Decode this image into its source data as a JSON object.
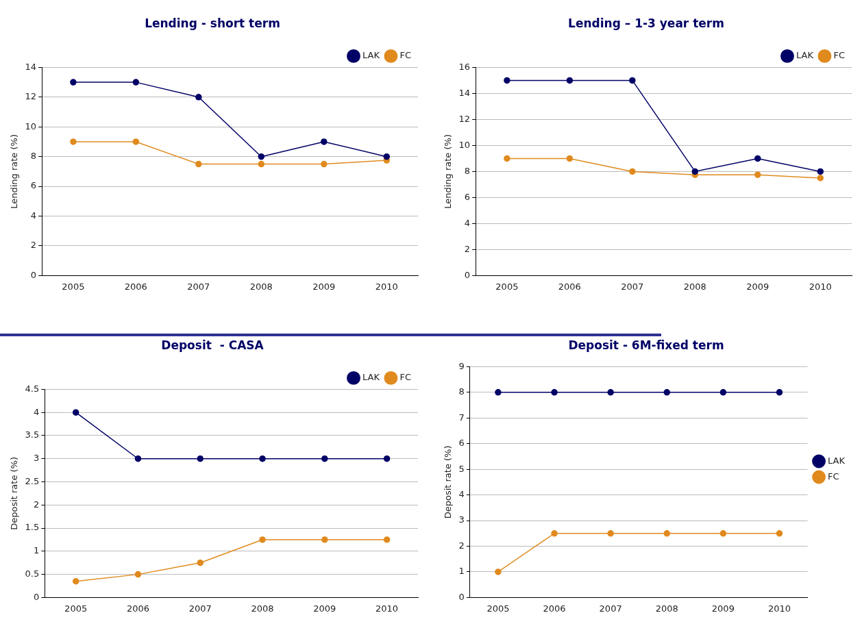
{
  "chart_data": [
    {
      "type": "line",
      "title": "Lending - short term",
      "ylabel": "Lending rate (%)",
      "categories": [
        "2005",
        "2006",
        "2007",
        "2008",
        "2009",
        "2010"
      ],
      "series": [
        {
          "name": "LAK",
          "color": "#000066",
          "values": [
            13,
            13,
            12,
            8,
            9,
            8
          ]
        },
        {
          "name": "FC",
          "color": "#e08a1e",
          "values": [
            9,
            9,
            7.5,
            7.5,
            7.5,
            7.75
          ]
        }
      ],
      "ylim": [
        0,
        14
      ],
      "yticks": [
        0,
        2,
        4,
        6,
        8,
        10,
        12,
        14
      ],
      "grid": "y",
      "legend": "top right",
      "marker": "circle",
      "line_style": "solid"
    },
    {
      "type": "line",
      "title": "Lending – 1-3 year term",
      "ylabel": "Lending rate (%)",
      "categories": [
        "2005",
        "2006",
        "2007",
        "2008",
        "2009",
        "2010"
      ],
      "series": [
        {
          "name": "LAK",
          "color": "#000066",
          "values": [
            15,
            15,
            15,
            8,
            9,
            8
          ]
        },
        {
          "name": "FC",
          "color": "#e08a1e",
          "values": [
            9,
            9,
            8,
            7.75,
            7.75,
            7.5
          ]
        }
      ],
      "ylim": [
        0,
        16
      ],
      "yticks": [
        0,
        2,
        4,
        6,
        8,
        10,
        12,
        14,
        16
      ],
      "grid": "y",
      "legend": "top right",
      "marker": "circle",
      "line_style": "solid"
    },
    {
      "type": "line",
      "title": "Deposit  - CASA",
      "ylabel": "Deposit rate (%)",
      "categories": [
        "2005",
        "2006",
        "2007",
        "2008",
        "2009",
        "2010"
      ],
      "series": [
        {
          "name": "LAK",
          "color": "#000066",
          "values": [
            4,
            3,
            3,
            3,
            3,
            3
          ]
        },
        {
          "name": "FC",
          "color": "#e08a1e",
          "values": [
            0.35,
            0.5,
            0.75,
            1.25,
            1.25,
            1.25
          ]
        }
      ],
      "ylim": [
        0,
        4.5
      ],
      "yticks": [
        0,
        0.5,
        1,
        1.5,
        2,
        2.5,
        3,
        3.5,
        4,
        4.5
      ],
      "grid": "y",
      "legend": "top right",
      "marker": "circle",
      "line_style": "solid"
    },
    {
      "type": "line",
      "title": "Deposit - 6M-fixed term",
      "ylabel": "Deposit rate (%)",
      "categories": [
        "2005",
        "2006",
        "2007",
        "2008",
        "2009",
        "2010"
      ],
      "series": [
        {
          "name": "LAK",
          "color": "#000066",
          "values": [
            8,
            8,
            8,
            8,
            8,
            8
          ]
        },
        {
          "name": "FC",
          "color": "#e08a1e",
          "values": [
            1,
            2.5,
            2.5,
            2.5,
            2.5,
            2.5
          ]
        }
      ],
      "ylim": [
        0,
        9
      ],
      "yticks": [
        0,
        1,
        2,
        3,
        4,
        5,
        6,
        7,
        8,
        9
      ],
      "grid": "y",
      "legend": "right",
      "marker": "circle",
      "line_style": "solid"
    }
  ]
}
